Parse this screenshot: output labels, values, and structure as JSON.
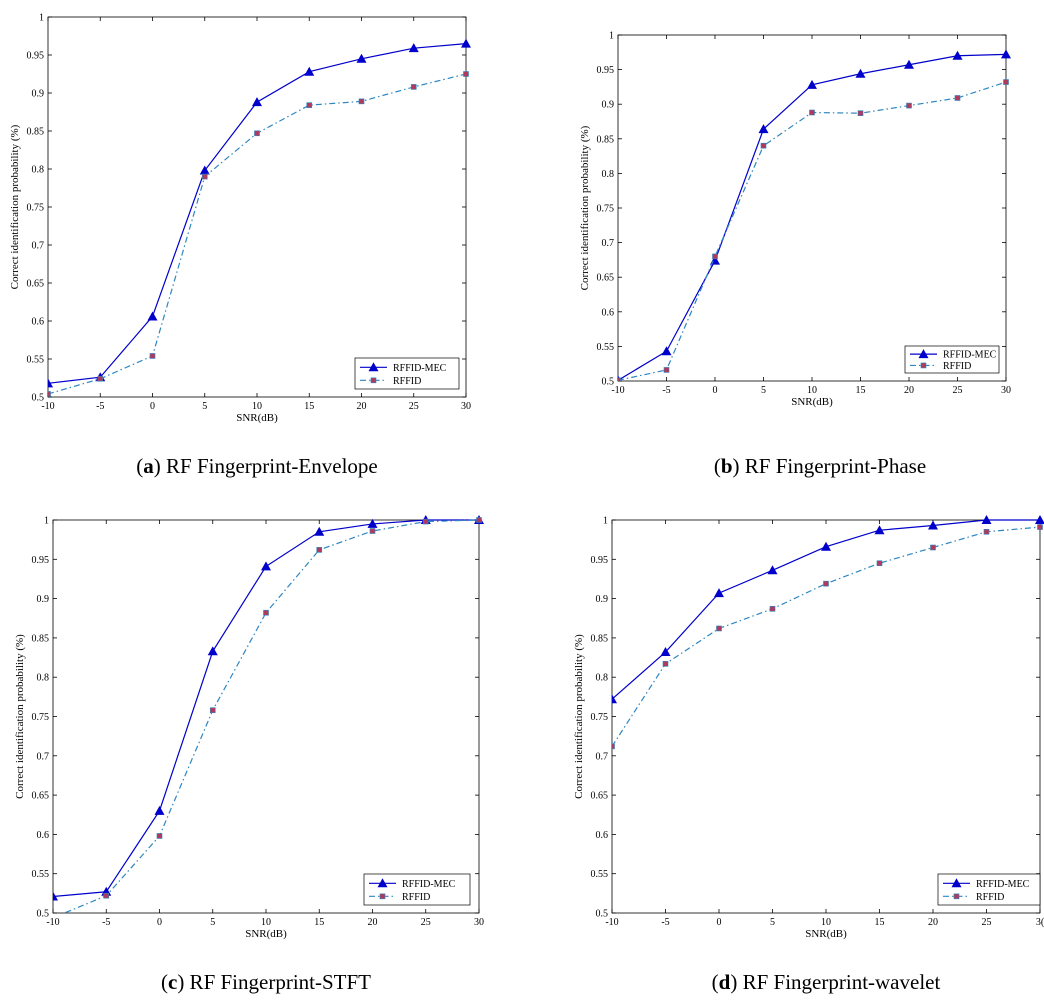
{
  "chart_data": [
    {
      "type": "line",
      "caption_letter": "a",
      "caption_text": "RF Fingerprint-Envelope",
      "xlabel": "SNR(dB)",
      "ylabel": "Correct identification probability (%)",
      "xlim": [
        -10,
        30
      ],
      "ylim": [
        0.5,
        1
      ],
      "x": [
        -10,
        -5,
        0,
        5,
        10,
        15,
        20,
        25,
        30
      ],
      "x_ticks": [
        "-10",
        "-5",
        "0",
        "5",
        "10",
        "15",
        "20",
        "25",
        "30"
      ],
      "y_ticks": [
        "0.5",
        "0.55",
        "0.6",
        "0.65",
        "0.7",
        "0.75",
        "0.8",
        "0.85",
        "0.9",
        "0.95",
        "1"
      ],
      "legend_position": "bottom-right",
      "series": [
        {
          "name": "RFFID-MEC",
          "color": "#0000cc",
          "style": "solid",
          "marker": "triangle",
          "values": [
            0.518,
            0.526,
            0.606,
            0.798,
            0.888,
            0.928,
            0.945,
            0.959,
            0.965
          ]
        },
        {
          "name": "RFFID",
          "color": "#2e86c1",
          "style": "dashdot",
          "marker": "square",
          "values": [
            0.504,
            0.524,
            0.554,
            0.79,
            0.847,
            0.884,
            0.889,
            0.908,
            0.925
          ]
        }
      ]
    },
    {
      "type": "line",
      "caption_letter": "b",
      "caption_text": "RF Fingerprint-Phase",
      "xlabel": "SNR(dB)",
      "ylabel": "Correct identification probability (%)",
      "xlim": [
        -10,
        30
      ],
      "ylim": [
        0.5,
        1
      ],
      "x": [
        -10,
        -5,
        0,
        5,
        10,
        15,
        20,
        25,
        30
      ],
      "x_ticks": [
        "-10",
        "-5",
        "0",
        "5",
        "10",
        "15",
        "20",
        "25",
        "30"
      ],
      "y_ticks": [
        "0.5",
        "0.55",
        "0.6",
        "0.65",
        "0.7",
        "0.75",
        "0.8",
        "0.85",
        "0.9",
        "0.95",
        "1"
      ],
      "legend_position": "bottom-right",
      "series": [
        {
          "name": "RFFID-MEC",
          "color": "#0000cc",
          "style": "solid",
          "marker": "triangle",
          "values": [
            0.501,
            0.543,
            0.674,
            0.864,
            0.928,
            0.944,
            0.957,
            0.97,
            0.972
          ]
        },
        {
          "name": "RFFID",
          "color": "#2e86c1",
          "style": "dashdot",
          "marker": "square",
          "values": [
            0.501,
            0.516,
            0.68,
            0.84,
            0.888,
            0.887,
            0.898,
            0.909,
            0.932
          ]
        }
      ]
    },
    {
      "type": "line",
      "caption_letter": "c",
      "caption_text": "RF Fingerprint-STFT",
      "xlabel": "SNR(dB)",
      "ylabel": "Correct identification probability (%)",
      "xlim": [
        -10,
        30
      ],
      "ylim": [
        0.5,
        1
      ],
      "x": [
        -10,
        -5,
        0,
        5,
        10,
        15,
        20,
        25,
        30
      ],
      "x_ticks": [
        "-10",
        "-5",
        "0",
        "5",
        "10",
        "15",
        "20",
        "25",
        "30"
      ],
      "y_ticks": [
        "0.5",
        "0.55",
        "0.6",
        "0.65",
        "0.7",
        "0.75",
        "0.8",
        "0.85",
        "0.9",
        "0.95",
        "1"
      ],
      "legend_position": "bottom-right",
      "series": [
        {
          "name": "RFFID-MEC",
          "color": "#0000cc",
          "style": "solid",
          "marker": "triangle",
          "values": [
            0.521,
            0.527,
            0.63,
            0.833,
            0.941,
            0.985,
            0.995,
            1.0,
            1.0
          ]
        },
        {
          "name": "RFFID",
          "color": "#2e86c1",
          "style": "dashdot",
          "marker": "square",
          "values": [
            0.494,
            0.522,
            0.598,
            0.758,
            0.882,
            0.962,
            0.986,
            0.998,
            1.0
          ]
        }
      ]
    },
    {
      "type": "line",
      "caption_letter": "d",
      "caption_text": "RF Fingerprint-wavelet",
      "xlabel": "SNR(dB)",
      "ylabel": "Correct identification probability (%)",
      "xlim": [
        -10,
        30
      ],
      "ylim": [
        0.5,
        1
      ],
      "x": [
        -10,
        -5,
        0,
        5,
        10,
        15,
        20,
        25,
        30
      ],
      "x_ticks": [
        "-10",
        "-5",
        "0",
        "5",
        "10",
        "15",
        "20",
        "25",
        "3("
      ],
      "y_ticks": [
        "0.5",
        "0.55",
        "0.6",
        "0.65",
        "0.7",
        "0.75",
        "0.8",
        "0.85",
        "0.9",
        "0.95",
        "1"
      ],
      "legend_position": "bottom-right",
      "series": [
        {
          "name": "RFFID-MEC",
          "color": "#0000cc",
          "style": "solid",
          "marker": "triangle",
          "values": [
            0.772,
            0.832,
            0.907,
            0.936,
            0.966,
            0.987,
            0.993,
            1.0,
            1.0
          ]
        },
        {
          "name": "RFFID",
          "color": "#2e86c1",
          "style": "dashdot",
          "marker": "square",
          "values": [
            0.712,
            0.817,
            0.862,
            0.887,
            0.919,
            0.945,
            0.965,
            0.985,
            0.991
          ]
        }
      ]
    }
  ]
}
